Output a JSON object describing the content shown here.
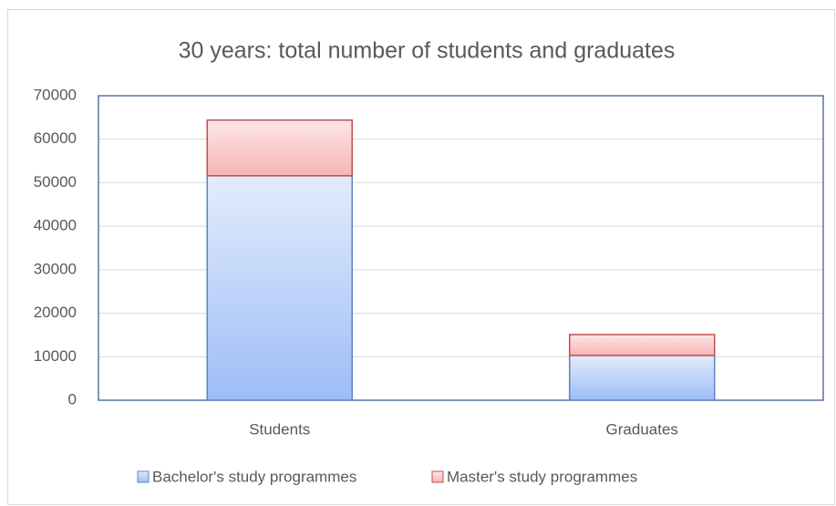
{
  "chart_data": {
    "type": "stacked_bar",
    "title": "30 years: total number of students and graduates",
    "categories": [
      "Students",
      "Graduates"
    ],
    "series": [
      {
        "name": "Bachelor's study programmes",
        "color": "#5b84c4",
        "values": [
          51600,
          10300
        ]
      },
      {
        "name": "Master's study programmes",
        "color": "#c0504d",
        "values": [
          12800,
          4800
        ]
      }
    ],
    "ylim": [
      0,
      70000
    ],
    "yticks": [
      0,
      10000,
      20000,
      30000,
      40000,
      50000,
      60000,
      70000
    ],
    "grid": true,
    "legend": "bottom"
  }
}
